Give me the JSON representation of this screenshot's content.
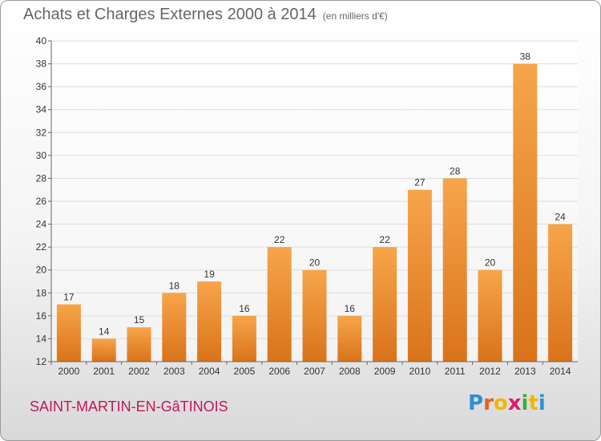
{
  "header": {
    "title": "Achats et Charges Externes 2000 à 2014",
    "unit": "(en milliers d'€)"
  },
  "footer": {
    "city": "SAINT-MARTIN-EN-GâTINOIS"
  },
  "logo": {
    "letters": [
      "P",
      "r",
      "o",
      "x",
      "i",
      "t",
      "i"
    ],
    "colors": [
      "#2e8fd6",
      "#e85d24",
      "#f2b705",
      "#e31b6d",
      "#3cae3a",
      "#f2b705",
      "#2e8fd6"
    ]
  },
  "chart_data": {
    "type": "bar",
    "title": "Achats et Charges Externes 2000 à 2014",
    "subtitle": "(en milliers d'€)",
    "xlabel": "",
    "ylabel": "",
    "categories": [
      "2000",
      "2001",
      "2002",
      "2003",
      "2004",
      "2005",
      "2006",
      "2007",
      "2008",
      "2009",
      "2010",
      "2011",
      "2012",
      "2013",
      "2014"
    ],
    "values": [
      17,
      14,
      15,
      18,
      19,
      16,
      22,
      20,
      16,
      22,
      27,
      28,
      20,
      38,
      24
    ],
    "ylim": [
      12,
      40
    ],
    "yticks": [
      12,
      14,
      16,
      18,
      20,
      22,
      24,
      26,
      28,
      30,
      32,
      34,
      36,
      38,
      40
    ],
    "grid": true,
    "bar_color_top": "#f7a54a",
    "bar_color_bottom": "#d9731a"
  }
}
